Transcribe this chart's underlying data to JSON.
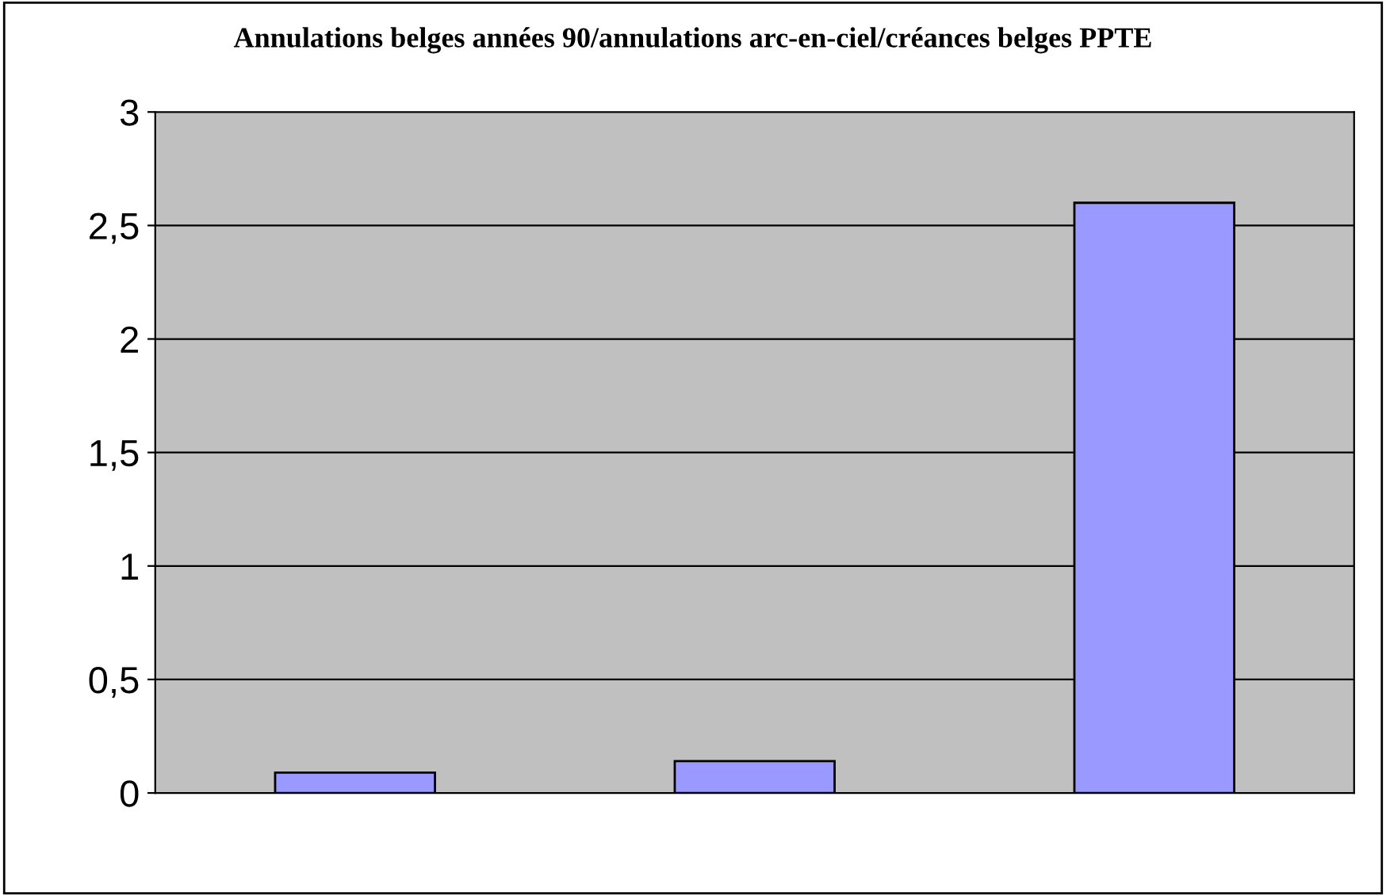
{
  "chart_data": {
    "type": "bar",
    "title": "Annulations belges années 90/annulations arc-en-ciel/créances belges PPTE",
    "categories": [
      null,
      null,
      null
    ],
    "values": [
      0.09,
      0.14,
      2.6
    ],
    "color": "#9999ff",
    "ylim": [
      0,
      3
    ],
    "yticks": [
      0,
      {
        "value": 0.5,
        "label": "0,5"
      },
      1,
      {
        "value": 1.5,
        "label": "1,5"
      },
      2,
      {
        "value": 2.5,
        "label": "2,5"
      },
      3
    ],
    "grid": "y",
    "legend": false
  }
}
